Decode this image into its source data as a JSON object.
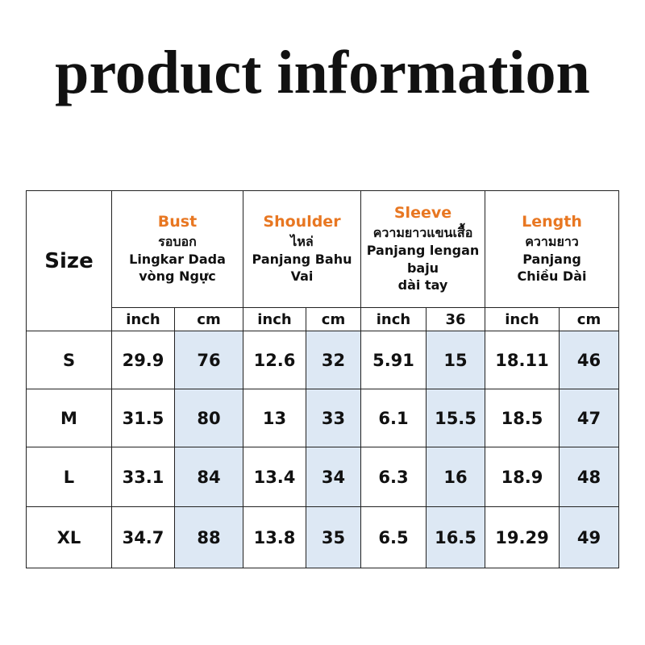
{
  "title": "product information",
  "table": {
    "size_header": "Size",
    "columns": [
      {
        "name": "Bust",
        "lines": [
          "รอบอก",
          "Lingkar Dada",
          "vòng Ngực"
        ]
      },
      {
        "name": "Shoulder",
        "lines": [
          "ไหล่",
          "Panjang Bahu",
          "Vai"
        ]
      },
      {
        "name": "Sleeve",
        "lines": [
          "ความยาวแขนเสื้อ",
          "Panjang lengan",
          "baju",
          "dài tay"
        ]
      },
      {
        "name": "Length",
        "lines": [
          "ความยาว",
          "Panjang",
          "Chiều Dài"
        ]
      }
    ],
    "units": [
      "inch",
      "cm",
      "inch",
      "cm",
      "inch",
      "36",
      "inch",
      "cm"
    ],
    "rows": [
      [
        "S",
        29.9,
        76,
        12.6,
        32,
        5.91,
        15,
        18.11,
        46
      ],
      [
        "M",
        31.5,
        80,
        13,
        33,
        6.1,
        15.5,
        18.5,
        47
      ],
      [
        "L",
        33.1,
        84,
        13.4,
        34,
        6.3,
        16,
        18.9,
        48
      ],
      [
        "XL",
        34.7,
        88,
        13.8,
        35,
        6.5,
        16.5,
        19.29,
        49
      ]
    ]
  }
}
